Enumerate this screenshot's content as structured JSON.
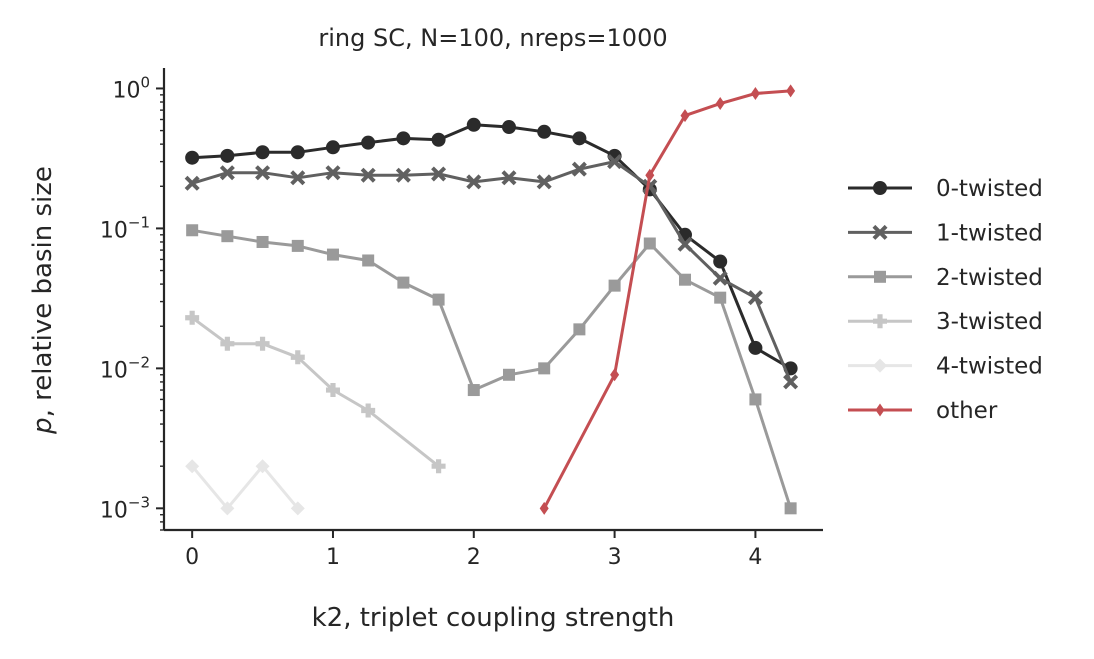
{
  "chart_data": {
    "type": "line",
    "title": "ring SC, N=100, nreps=1000",
    "xlabel": "k2, triplet coupling strength",
    "ylabel_italic": "p",
    "ylabel_rest": ", relative basin size",
    "yscale": "log",
    "xlim": [
      -0.2,
      4.48
    ],
    "ylim": [
      0.0007,
      1.4
    ],
    "x_ticks": [
      0,
      1,
      2,
      3,
      4
    ],
    "x_tick_labels": [
      "0",
      "1",
      "2",
      "3",
      "4"
    ],
    "y_ticks": [
      0.001,
      0.01,
      0.1,
      1
    ],
    "y_tick_bases": [
      "10",
      "10",
      "10",
      "10"
    ],
    "y_tick_exps": [
      "−3",
      "−2",
      "−1",
      "0"
    ],
    "grid": false,
    "legend_position": "outside-right",
    "series": [
      {
        "name": "0-twisted",
        "color": "#2b2b2b",
        "marker": "circle",
        "x": [
          0,
          0.25,
          0.5,
          0.75,
          1,
          1.25,
          1.5,
          1.75,
          2,
          2.25,
          2.5,
          2.75,
          3,
          3.25,
          3.5,
          3.75,
          4,
          4.25
        ],
        "y": [
          0.32,
          0.33,
          0.35,
          0.35,
          0.38,
          0.41,
          0.44,
          0.43,
          0.55,
          0.53,
          0.49,
          0.44,
          0.33,
          0.19,
          0.09,
          0.058,
          0.014,
          0.01
        ]
      },
      {
        "name": "1-twisted",
        "color": "#606060",
        "marker": "x",
        "x": [
          0,
          0.25,
          0.5,
          0.75,
          1,
          1.25,
          1.5,
          1.75,
          2,
          2.25,
          2.5,
          2.75,
          3,
          3.25,
          3.5,
          3.75,
          4,
          4.25
        ],
        "y": [
          0.21,
          0.25,
          0.25,
          0.23,
          0.25,
          0.24,
          0.24,
          0.245,
          0.215,
          0.23,
          0.215,
          0.265,
          0.3,
          0.2,
          0.077,
          0.044,
          0.032,
          0.008
        ]
      },
      {
        "name": "2-twisted",
        "color": "#9a9a9a",
        "marker": "square",
        "x": [
          0,
          0.25,
          0.5,
          0.75,
          1,
          1.25,
          1.5,
          1.75,
          2,
          2.25,
          2.5,
          2.75,
          3,
          3.25,
          3.5,
          3.75,
          4,
          4.25
        ],
        "y": [
          0.097,
          0.088,
          0.08,
          0.075,
          0.065,
          0.059,
          0.041,
          0.031,
          0.007,
          0.009,
          0.01,
          0.019,
          0.039,
          0.078,
          0.043,
          0.032,
          0.006,
          0.001
        ]
      },
      {
        "name": "3-twisted",
        "color": "#c6c6c6",
        "marker": "plus",
        "x": [
          0,
          0.25,
          0.5,
          0.75,
          1,
          1.25,
          1.75
        ],
        "y": [
          0.023,
          0.015,
          0.015,
          0.012,
          0.007,
          0.005,
          0.002
        ]
      },
      {
        "name": "4-twisted",
        "color": "#e6e6e6",
        "marker": "diamond",
        "x": [
          0,
          0.25,
          0.5,
          0.75
        ],
        "y": [
          0.002,
          0.001,
          0.002,
          0.001
        ]
      },
      {
        "name": "other",
        "color": "#c44e52",
        "marker": "thin-diamond",
        "x": [
          2.5,
          3,
          3.25,
          3.5,
          3.75,
          4,
          4.25
        ],
        "y": [
          0.001,
          0.009,
          0.24,
          0.64,
          0.78,
          0.92,
          0.96
        ]
      }
    ]
  }
}
